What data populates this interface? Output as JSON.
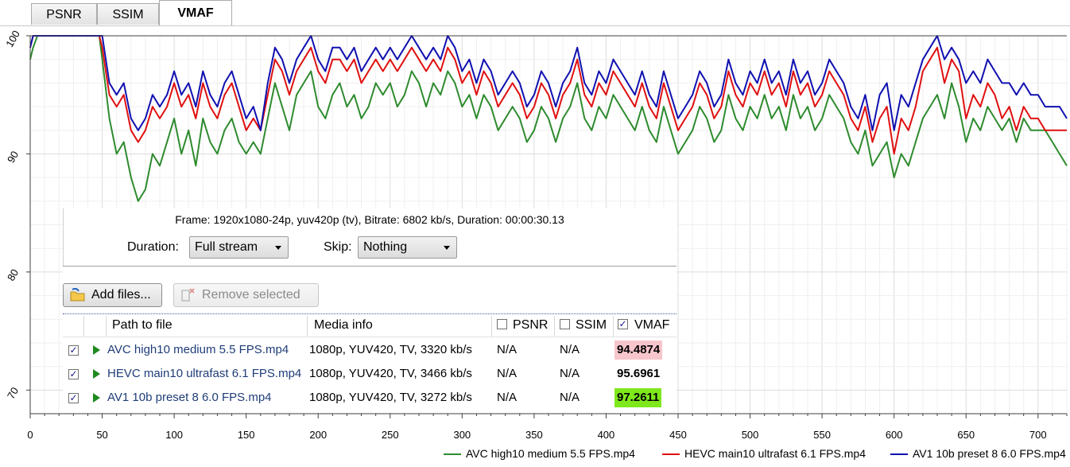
{
  "tabs": [
    {
      "label": "PSNR",
      "active": false
    },
    {
      "label": "SSIM",
      "active": false
    },
    {
      "label": "VMAF",
      "active": true
    }
  ],
  "info": {
    "frame_text": "Frame: 1920x1080-24p, yuv420p (tv), Bitrate: 6802 kb/s, Duration: 00:00:30.13"
  },
  "controls": {
    "duration_label": "Duration:",
    "duration_value": "Full stream",
    "skip_label": "Skip:",
    "skip_value": "Nothing",
    "add_files": "Add files...",
    "remove_selected": "Remove selected"
  },
  "table": {
    "headers": {
      "path": "Path to file",
      "media": "Media info",
      "psnr": "PSNR",
      "ssim": "SSIM",
      "vmaf": "VMAF"
    },
    "header_checks": {
      "psnr": false,
      "ssim": false,
      "vmaf": true
    },
    "rows": [
      {
        "checked": true,
        "path": "AVC high10 medium 5.5 FPS.mp4",
        "media": "1080p, YUV420, TV, 3320 kb/s",
        "psnr": "N/A",
        "ssim": "N/A",
        "vmaf": "94.4874",
        "vmaf_bg": "#f7c6cc"
      },
      {
        "checked": true,
        "path": "HEVC main10 ultrafast 6.1 FPS.mp4",
        "media": "1080p, YUV420, TV, 3466 kb/s",
        "psnr": "N/A",
        "ssim": "N/A",
        "vmaf": "95.6961",
        "vmaf_bg": "#ffffff"
      },
      {
        "checked": true,
        "path": "AV1 10b preset 8 6.0 FPS.mp4",
        "media": "1080p, YUV420, TV, 3272 kb/s",
        "psnr": "N/A",
        "ssim": "N/A",
        "vmaf": "97.2611",
        "vmaf_bg": "#7ee81c"
      }
    ]
  },
  "chart_data": {
    "type": "line",
    "title": "",
    "xlabel": "",
    "ylabel": "",
    "xlim": [
      0,
      720
    ],
    "ylim": [
      68,
      100
    ],
    "xticks": [
      0,
      50,
      100,
      150,
      200,
      250,
      300,
      350,
      400,
      450,
      500,
      550,
      600,
      650,
      700
    ],
    "yticks": [
      70,
      80,
      90,
      100
    ],
    "grid": true,
    "legend_position": "bottom-right",
    "series": [
      {
        "name": "AVC high10 medium 5.5 FPS.mp4",
        "color": "#2e8b2e",
        "x": [
          0,
          2,
          5,
          10,
          15,
          20,
          25,
          30,
          35,
          40,
          45,
          48,
          50,
          55,
          60,
          65,
          70,
          75,
          80,
          85,
          90,
          95,
          100,
          105,
          110,
          115,
          120,
          125,
          130,
          135,
          140,
          145,
          150,
          155,
          160,
          165,
          170,
          175,
          180,
          185,
          190,
          195,
          200,
          205,
          210,
          215,
          220,
          225,
          230,
          235,
          240,
          245,
          250,
          255,
          260,
          265,
          270,
          275,
          280,
          285,
          290,
          295,
          300,
          305,
          310,
          315,
          320,
          325,
          330,
          335,
          340,
          345,
          350,
          355,
          360,
          365,
          370,
          375,
          380,
          385,
          390,
          395,
          400,
          405,
          410,
          415,
          420,
          425,
          430,
          435,
          440,
          445,
          450,
          455,
          460,
          465,
          470,
          475,
          480,
          485,
          490,
          495,
          500,
          505,
          510,
          515,
          520,
          525,
          530,
          535,
          540,
          545,
          550,
          555,
          560,
          565,
          570,
          575,
          580,
          585,
          590,
          595,
          600,
          605,
          610,
          615,
          620,
          625,
          630,
          635,
          640,
          645,
          650,
          655,
          660,
          665,
          670,
          675,
          680,
          685,
          690,
          695,
          700,
          705,
          710,
          715,
          720
        ],
        "y": [
          98,
          99,
          100,
          100,
          100,
          100,
          100,
          100,
          100,
          100,
          100,
          100,
          98,
          93,
          90,
          91,
          88,
          86,
          87,
          90,
          89,
          91,
          93,
          90,
          92,
          89,
          93,
          91,
          90,
          92,
          93,
          91,
          90,
          91,
          90,
          93,
          96,
          94,
          92,
          95,
          96,
          97,
          94,
          93,
          95,
          96,
          94,
          95,
          93,
          94,
          96,
          95,
          96,
          94,
          95,
          97,
          96,
          94,
          96,
          95,
          97,
          96,
          94,
          95,
          93,
          95,
          94,
          92,
          93,
          94,
          93,
          91,
          92,
          94,
          93,
          91,
          93,
          94,
          96,
          93,
          92,
          94,
          93,
          95,
          94,
          93,
          92,
          94,
          92,
          91,
          94,
          92,
          90,
          91,
          92,
          94,
          93,
          91,
          92,
          95,
          93,
          92,
          94,
          93,
          95,
          93,
          94,
          92,
          95,
          93,
          94,
          92,
          93,
          95,
          94,
          93,
          91,
          90,
          92,
          89,
          90,
          91,
          88,
          90,
          89,
          91,
          93,
          94,
          95,
          93,
          96,
          94,
          91,
          93,
          92,
          94,
          93,
          92,
          93,
          91,
          93,
          92,
          92,
          92,
          91,
          90,
          89
        ]
      },
      {
        "name": "HEVC main10 ultrafast 6.1 FPS.mp4",
        "color": "#e01010",
        "x": [
          0,
          2,
          5,
          10,
          15,
          20,
          25,
          30,
          35,
          40,
          45,
          48,
          50,
          55,
          60,
          65,
          70,
          75,
          80,
          85,
          90,
          95,
          100,
          105,
          110,
          115,
          120,
          125,
          130,
          135,
          140,
          145,
          150,
          155,
          160,
          165,
          170,
          175,
          180,
          185,
          190,
          195,
          200,
          205,
          210,
          215,
          220,
          225,
          230,
          235,
          240,
          245,
          250,
          255,
          260,
          265,
          270,
          275,
          280,
          285,
          290,
          295,
          300,
          305,
          310,
          315,
          320,
          325,
          330,
          335,
          340,
          345,
          350,
          355,
          360,
          365,
          370,
          375,
          380,
          385,
          390,
          395,
          400,
          405,
          410,
          415,
          420,
          425,
          430,
          435,
          440,
          445,
          450,
          455,
          460,
          465,
          470,
          475,
          480,
          485,
          490,
          495,
          500,
          505,
          510,
          515,
          520,
          525,
          530,
          535,
          540,
          545,
          550,
          555,
          560,
          565,
          570,
          575,
          580,
          585,
          590,
          595,
          600,
          605,
          610,
          615,
          620,
          625,
          630,
          635,
          640,
          645,
          650,
          655,
          660,
          665,
          670,
          675,
          680,
          685,
          690,
          695,
          700,
          705,
          710,
          715,
          720
        ],
        "y": [
          99,
          100,
          100,
          100,
          100,
          100,
          100,
          100,
          100,
          100,
          100,
          100,
          99,
          95,
          94,
          95,
          92,
          91,
          92,
          94,
          93,
          94,
          96,
          94,
          95,
          93,
          96,
          94,
          93,
          95,
          96,
          94,
          92,
          93,
          92,
          95,
          98,
          97,
          95,
          97,
          98,
          99,
          97,
          96,
          98,
          98,
          97,
          98,
          96,
          97,
          98,
          97,
          98,
          97,
          98,
          99,
          98,
          97,
          98,
          97,
          99,
          98,
          96,
          97,
          95,
          97,
          96,
          94,
          95,
          96,
          95,
          93,
          94,
          96,
          95,
          93,
          95,
          96,
          98,
          95,
          94,
          96,
          95,
          97,
          96,
          95,
          94,
          96,
          94,
          93,
          96,
          94,
          92,
          93,
          94,
          96,
          95,
          93,
          94,
          97,
          95,
          94,
          96,
          95,
          97,
          95,
          96,
          94,
          97,
          95,
          96,
          94,
          95,
          97,
          96,
          95,
          93,
          92,
          94,
          91,
          93,
          94,
          90,
          93,
          92,
          94,
          97,
          98,
          99,
          96,
          98,
          97,
          93,
          95,
          94,
          96,
          95,
          93,
          94,
          92,
          94,
          93,
          93,
          92,
          92,
          92,
          92
        ]
      },
      {
        "name": "AV1 10b preset 8 6.0 FPS.mp4",
        "color": "#1010b0",
        "x": [
          0,
          2,
          5,
          10,
          15,
          20,
          25,
          30,
          35,
          40,
          45,
          48,
          50,
          55,
          60,
          65,
          70,
          75,
          80,
          85,
          90,
          95,
          100,
          105,
          110,
          115,
          120,
          125,
          130,
          135,
          140,
          145,
          150,
          155,
          160,
          165,
          170,
          175,
          180,
          185,
          190,
          195,
          200,
          205,
          210,
          215,
          220,
          225,
          230,
          235,
          240,
          245,
          250,
          255,
          260,
          265,
          270,
          275,
          280,
          285,
          290,
          295,
          300,
          305,
          310,
          315,
          320,
          325,
          330,
          335,
          340,
          345,
          350,
          355,
          360,
          365,
          370,
          375,
          380,
          385,
          390,
          395,
          400,
          405,
          410,
          415,
          420,
          425,
          430,
          435,
          440,
          445,
          450,
          455,
          460,
          465,
          470,
          475,
          480,
          485,
          490,
          495,
          500,
          505,
          510,
          515,
          520,
          525,
          530,
          535,
          540,
          545,
          550,
          555,
          560,
          565,
          570,
          575,
          580,
          585,
          590,
          595,
          600,
          605,
          610,
          615,
          620,
          625,
          630,
          635,
          640,
          645,
          650,
          655,
          660,
          665,
          670,
          675,
          680,
          685,
          690,
          695,
          700,
          705,
          710,
          715,
          720
        ],
        "y": [
          99,
          100,
          100,
          100,
          100,
          100,
          100,
          100,
          100,
          100,
          100,
          100,
          100,
          96,
          95,
          96,
          93,
          92,
          93,
          95,
          94,
          95,
          97,
          95,
          96,
          94,
          97,
          95,
          94,
          96,
          97,
          95,
          93,
          94,
          92,
          96,
          99,
          98,
          96,
          98,
          99,
          100,
          98,
          97,
          99,
          99,
          98,
          99,
          97,
          98,
          99,
          98,
          99,
          98,
          99,
          100,
          99,
          98,
          99,
          98,
          100,
          99,
          97,
          98,
          96,
          98,
          97,
          95,
          96,
          97,
          96,
          94,
          95,
          97,
          96,
          94,
          96,
          97,
          99,
          96,
          95,
          97,
          96,
          98,
          97,
          96,
          95,
          97,
          95,
          94,
          97,
          95,
          93,
          94,
          95,
          97,
          96,
          94,
          95,
          98,
          96,
          95,
          97,
          96,
          98,
          96,
          97,
          95,
          98,
          96,
          97,
          95,
          96,
          98,
          97,
          96,
          94,
          93,
          95,
          92,
          95,
          96,
          92,
          95,
          94,
          96,
          98,
          99,
          100,
          98,
          99,
          98,
          96,
          97,
          96,
          98,
          97,
          96,
          96,
          95,
          96,
          95,
          95,
          94,
          94,
          94,
          93
        ]
      }
    ]
  }
}
